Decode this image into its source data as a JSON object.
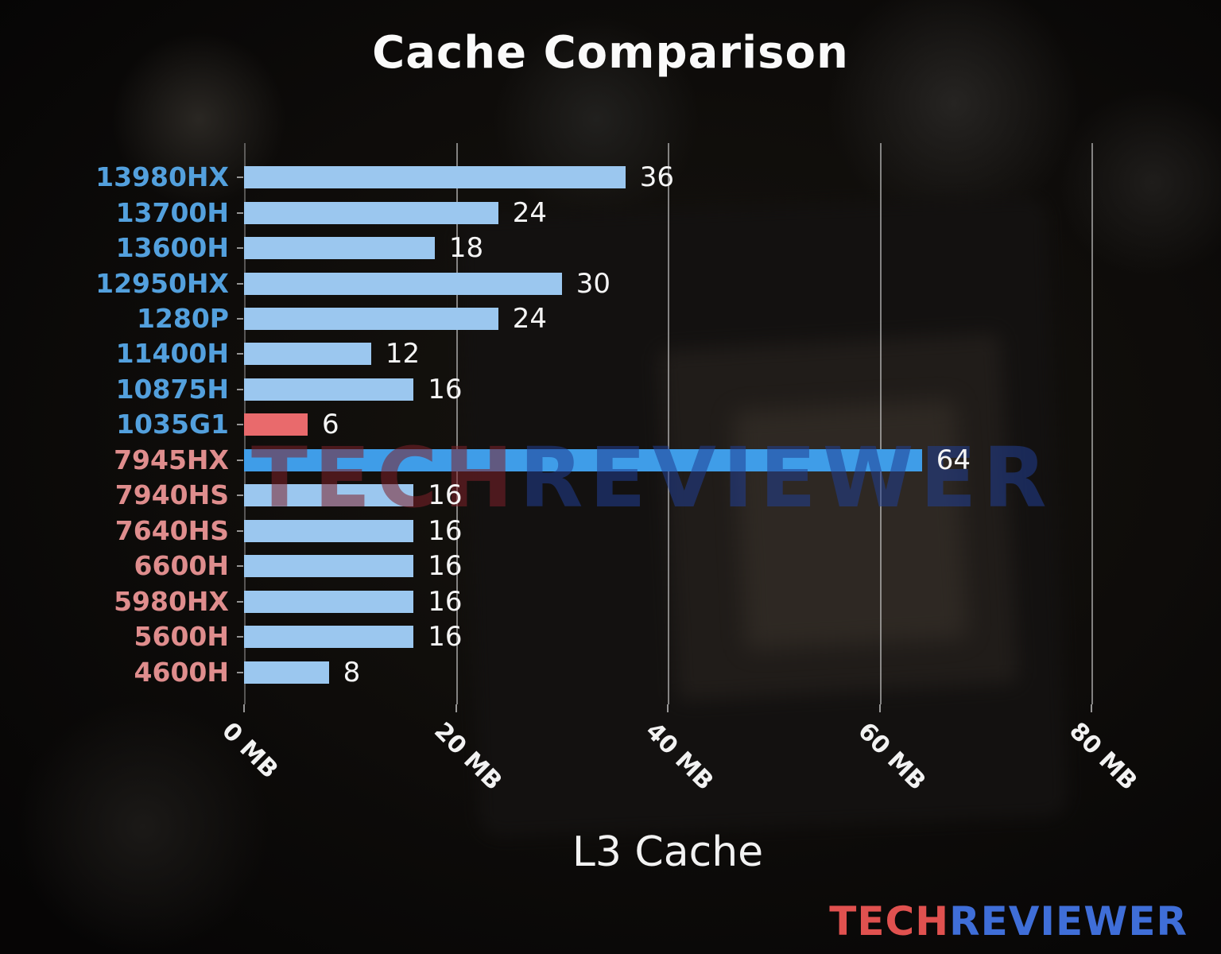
{
  "title": "Cache Comparison",
  "chart_data": {
    "type": "bar",
    "orientation": "horizontal",
    "title": "Cache Comparison",
    "xlabel": "L3 Cache",
    "ylabel": "",
    "xlim": [
      0,
      80
    ],
    "grid": true,
    "legend": false,
    "x_ticks": [
      {
        "value": 0,
        "label": "0 MB"
      },
      {
        "value": 20,
        "label": "20 MB"
      },
      {
        "value": 40,
        "label": "40 MB"
      },
      {
        "value": 60,
        "label": "60 MB"
      },
      {
        "value": 80,
        "label": "80 MB"
      }
    ],
    "categories": [
      "13980HX",
      "13700H",
      "13600H",
      "12950HX",
      "1280P",
      "11400H",
      "10875H",
      "1035G1",
      "7945HX",
      "7940HS",
      "7640HS",
      "6600H",
      "5980HX",
      "5600H",
      "4600H"
    ],
    "values": [
      36,
      24,
      18,
      30,
      24,
      12,
      16,
      6,
      64,
      16,
      16,
      16,
      16,
      16,
      8
    ],
    "bars": [
      {
        "label": "13980HX",
        "value": 36,
        "brand": "intel",
        "bar_color": "#9bc7ef",
        "label_color": "#53a0dd"
      },
      {
        "label": "13700H",
        "value": 24,
        "brand": "intel",
        "bar_color": "#9bc7ef",
        "label_color": "#53a0dd"
      },
      {
        "label": "13600H",
        "value": 18,
        "brand": "intel",
        "bar_color": "#9bc7ef",
        "label_color": "#53a0dd"
      },
      {
        "label": "12950HX",
        "value": 30,
        "brand": "intel",
        "bar_color": "#9bc7ef",
        "label_color": "#53a0dd"
      },
      {
        "label": "1280P",
        "value": 24,
        "brand": "intel",
        "bar_color": "#9bc7ef",
        "label_color": "#53a0dd"
      },
      {
        "label": "11400H",
        "value": 12,
        "brand": "intel",
        "bar_color": "#9bc7ef",
        "label_color": "#53a0dd"
      },
      {
        "label": "10875H",
        "value": 16,
        "brand": "intel",
        "bar_color": "#9bc7ef",
        "label_color": "#53a0dd"
      },
      {
        "label": "1035G1",
        "value": 6,
        "brand": "intel",
        "bar_color": "#e96a6c",
        "label_color": "#53a0dd"
      },
      {
        "label": "7945HX",
        "value": 64,
        "brand": "amd",
        "bar_color": "#3f9de8",
        "label_color": "#df8d8d"
      },
      {
        "label": "7940HS",
        "value": 16,
        "brand": "amd",
        "bar_color": "#9bc7ef",
        "label_color": "#df8d8d"
      },
      {
        "label": "7640HS",
        "value": 16,
        "brand": "amd",
        "bar_color": "#9bc7ef",
        "label_color": "#df8d8d"
      },
      {
        "label": "6600H",
        "value": 16,
        "brand": "amd",
        "bar_color": "#9bc7ef",
        "label_color": "#df8d8d"
      },
      {
        "label": "5980HX",
        "value": 16,
        "brand": "amd",
        "bar_color": "#9bc7ef",
        "label_color": "#df8d8d"
      },
      {
        "label": "5600H",
        "value": 16,
        "brand": "amd",
        "bar_color": "#9bc7ef",
        "label_color": "#df8d8d"
      },
      {
        "label": "4600H",
        "value": 8,
        "brand": "amd",
        "bar_color": "#9bc7ef",
        "label_color": "#df8d8d"
      }
    ],
    "value_label_color": "#f5f5f5",
    "gridline_color": "#e1e1e1",
    "tick_label_color": "#f2f2f2"
  },
  "watermark_center": {
    "part1": "TECH",
    "part2": "REVIEWER",
    "color1": "rgba(125,32,42,0.55)",
    "color2": "rgba(32,62,145,0.55)"
  },
  "brand_footer": {
    "part1": "TECH",
    "part2": "REVIEWER",
    "color1": "#e0514f",
    "color2": "#3f6ed8"
  }
}
